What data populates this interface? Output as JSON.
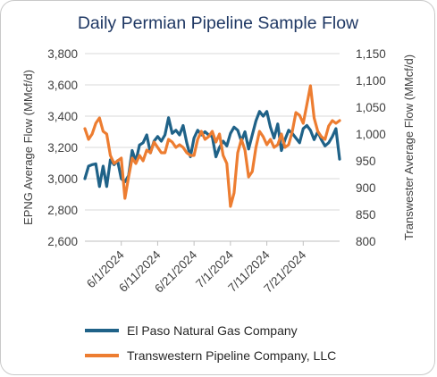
{
  "chart_data": {
    "type": "line",
    "title": "Daily Permian Pipeline Sample Flow",
    "ylabel_left": "EPNG Average Flow (MMcf/d)",
    "ylabel_right": "Transwester Average Flow (MMcf/d)",
    "ylim_left": [
      2600,
      3800
    ],
    "ylim_right": [
      800,
      1150
    ],
    "yticks_left": [
      "2,600",
      "2,800",
      "3,000",
      "3,200",
      "3,400",
      "3,600",
      "3,800"
    ],
    "yticks_right": [
      "800",
      "850",
      "900",
      "950",
      "1,000",
      "1,050",
      "1,100",
      "1,150"
    ],
    "yticks_left_values": [
      2600,
      2800,
      3000,
      3200,
      3400,
      3600,
      3800
    ],
    "yticks_right_values": [
      800,
      850,
      900,
      950,
      1000,
      1050,
      1100,
      1150
    ],
    "xlim": [
      "2024-05-22",
      "2024-07-31"
    ],
    "xticks": [
      "2024-06-01",
      "2024-06-11",
      "2024-06-21",
      "2024-07-01",
      "2024-07-11",
      "2024-07-21"
    ],
    "xtick_labels": [
      "6/1/2024",
      "6/11/2024",
      "6/21/2024",
      "7/1/2024",
      "7/11/2024",
      "7/21/2024"
    ],
    "grid": "horizontal",
    "legend_position": "bottom",
    "series": [
      {
        "name": "El Paso Natural Gas Company",
        "axis": "left",
        "color": "#1f6288",
        "x": [
          "2024-05-22",
          "2024-05-23",
          "2024-05-24",
          "2024-05-25",
          "2024-05-26",
          "2024-05-27",
          "2024-05-28",
          "2024-05-29",
          "2024-05-30",
          "2024-05-31",
          "2024-06-01",
          "2024-06-02",
          "2024-06-03",
          "2024-06-04",
          "2024-06-05",
          "2024-06-06",
          "2024-06-07",
          "2024-06-08",
          "2024-06-09",
          "2024-06-10",
          "2024-06-11",
          "2024-06-12",
          "2024-06-13",
          "2024-06-14",
          "2024-06-15",
          "2024-06-16",
          "2024-06-17",
          "2024-06-18",
          "2024-06-19",
          "2024-06-20",
          "2024-06-21",
          "2024-06-22",
          "2024-06-23",
          "2024-06-24",
          "2024-06-25",
          "2024-06-26",
          "2024-06-27",
          "2024-06-28",
          "2024-06-29",
          "2024-06-30",
          "2024-07-01",
          "2024-07-02",
          "2024-07-03",
          "2024-07-04",
          "2024-07-05",
          "2024-07-06",
          "2024-07-07",
          "2024-07-08",
          "2024-07-09",
          "2024-07-10",
          "2024-07-11",
          "2024-07-12",
          "2024-07-13",
          "2024-07-14",
          "2024-07-15",
          "2024-07-16",
          "2024-07-17",
          "2024-07-18",
          "2024-07-19",
          "2024-07-20",
          "2024-07-21",
          "2024-07-22",
          "2024-07-23",
          "2024-07-24",
          "2024-07-25",
          "2024-07-26",
          "2024-07-27",
          "2024-07-28",
          "2024-07-29",
          "2024-07-30",
          "2024-07-31"
        ],
        "values": [
          3000,
          3080,
          3090,
          3095,
          2950,
          3080,
          2950,
          3120,
          3090,
          3115,
          3000,
          2980,
          3020,
          3180,
          3110,
          3215,
          3230,
          3280,
          3165,
          3240,
          3270,
          3240,
          3280,
          3390,
          3290,
          3310,
          3280,
          3340,
          3230,
          3140,
          3260,
          3310,
          3280,
          3300,
          3280,
          3270,
          3140,
          3200,
          3240,
          3210,
          3290,
          3330,
          3310,
          3240,
          3300,
          3190,
          3280,
          3370,
          3430,
          3400,
          3430,
          3330,
          3260,
          3350,
          3180,
          3250,
          3310,
          3290,
          3260,
          3230,
          3320,
          3340,
          3310,
          3250,
          3300,
          3250,
          3210,
          3230,
          3270,
          3320,
          3125
        ]
      },
      {
        "name": "Transwestern Pipeline Company, LLC",
        "axis": "right",
        "color": "#ed7d31",
        "x": [
          "2024-05-22",
          "2024-05-23",
          "2024-05-24",
          "2024-05-25",
          "2024-05-26",
          "2024-05-27",
          "2024-05-28",
          "2024-05-29",
          "2024-05-30",
          "2024-05-31",
          "2024-06-01",
          "2024-06-02",
          "2024-06-03",
          "2024-06-04",
          "2024-06-05",
          "2024-06-06",
          "2024-06-07",
          "2024-06-08",
          "2024-06-09",
          "2024-06-10",
          "2024-06-11",
          "2024-06-12",
          "2024-06-13",
          "2024-06-14",
          "2024-06-15",
          "2024-06-16",
          "2024-06-17",
          "2024-06-18",
          "2024-06-19",
          "2024-06-20",
          "2024-06-21",
          "2024-06-22",
          "2024-06-23",
          "2024-06-24",
          "2024-06-25",
          "2024-06-26",
          "2024-06-27",
          "2024-06-28",
          "2024-06-29",
          "2024-06-30",
          "2024-07-01",
          "2024-07-02",
          "2024-07-03",
          "2024-07-04",
          "2024-07-05",
          "2024-07-06",
          "2024-07-07",
          "2024-07-08",
          "2024-07-09",
          "2024-07-10",
          "2024-07-11",
          "2024-07-12",
          "2024-07-13",
          "2024-07-14",
          "2024-07-15",
          "2024-07-16",
          "2024-07-17",
          "2024-07-18",
          "2024-07-19",
          "2024-07-20",
          "2024-07-21",
          "2024-07-22",
          "2024-07-23",
          "2024-07-24",
          "2024-07-25",
          "2024-07-26",
          "2024-07-27",
          "2024-07-28",
          "2024-07-29",
          "2024-07-30",
          "2024-07-31"
        ],
        "values": [
          1010,
          990,
          1000,
          1020,
          1030,
          1005,
          1000,
          960,
          945,
          950,
          955,
          880,
          920,
          955,
          945,
          960,
          950,
          970,
          965,
          985,
          975,
          965,
          965,
          990,
          985,
          975,
          980,
          975,
          965,
          960,
          960,
          990,
          1005,
          990,
          995,
          1005,
          985,
          1000,
          960,
          945,
          865,
          890,
          965,
          990,
          970,
          920,
          930,
          975,
          1005,
          995,
          980,
          990,
          975,
          980,
          1000,
          975,
          980,
          1005,
          1040,
          1035,
          1020,
          1055,
          1090,
          1030,
          1005,
          995,
          990,
          1015,
          1025,
          1020,
          1025
        ]
      }
    ]
  }
}
